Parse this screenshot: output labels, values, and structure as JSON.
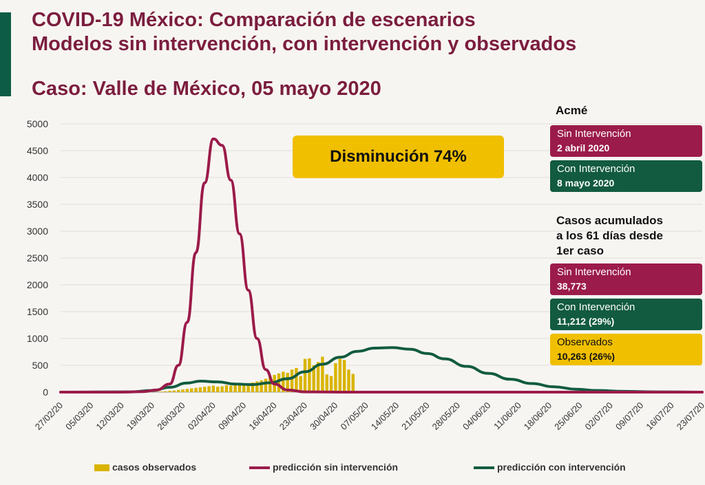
{
  "header": {
    "title_line1": "COVID-19 México: Comparación de escenarios",
    "title_line2": "Modelos sin intervención, con intervención y observados",
    "subtitle": "Caso: Valle de México, 05 mayo 2020"
  },
  "callout": {
    "text": "Disminución 74%"
  },
  "side_panel": {
    "acme_title": "Acmé",
    "acme_sin": {
      "label": "Sin Intervención",
      "value": "2 abril 2020"
    },
    "acme_con": {
      "label": "Con Intervención",
      "value": "8 mayo 2020"
    },
    "acum_title_line1": "Casos acumulados",
    "acum_title_line2": "a los 61 días desde",
    "acum_title_line3": "1er caso",
    "acum_sin": {
      "label": "Sin Intervención",
      "value": "38,773"
    },
    "acum_con": {
      "label": "Con Intervención",
      "value": "11,212 (29%)"
    },
    "acum_obs": {
      "label": "Observados",
      "value": "10,263 (26%)"
    }
  },
  "colors": {
    "title": "#7b1d3e",
    "sin_intervencion": "#9b1b4a",
    "con_intervencion": "#125b40",
    "observados": "#d9b400",
    "callout": "#f0bf00"
  },
  "chart_data": {
    "type": "line",
    "x_axis": {
      "type": "date",
      "tick_labels": [
        "27/02/20",
        "05/03/20",
        "12/03/20",
        "19/03/20",
        "26/03/20",
        "02/04/20",
        "09/04/20",
        "16/04/20",
        "23/04/20",
        "30/04/20",
        "07/05/20",
        "14/05/20",
        "21/05/20",
        "28/05/20",
        "04/06/20",
        "11/06/20",
        "18/06/20",
        "25/06/20",
        "02/07/20",
        "09/07/20",
        "16/07/20",
        "23/07/20"
      ]
    },
    "y_axis": {
      "ylim": [
        0,
        5000
      ],
      "tick_labels": [
        "0",
        "500",
        "1000",
        "1500",
        "2000",
        "2500",
        "3000",
        "3500",
        "4000",
        "4500",
        "5000"
      ]
    },
    "grid": "horizontal",
    "legend_position": "bottom",
    "series": [
      {
        "name": "predicción sin intervención",
        "kind": "line",
        "points": [
          [
            "2020-02-27",
            0
          ],
          [
            "2020-03-12",
            0
          ],
          [
            "2020-03-17",
            10
          ],
          [
            "2020-03-20",
            40
          ],
          [
            "2020-03-23",
            150
          ],
          [
            "2020-03-25",
            500
          ],
          [
            "2020-03-27",
            1300
          ],
          [
            "2020-03-29",
            2600
          ],
          [
            "2020-03-31",
            3900
          ],
          [
            "2020-04-02",
            4720
          ],
          [
            "2020-04-04",
            4600
          ],
          [
            "2020-04-06",
            3950
          ],
          [
            "2020-04-08",
            2950
          ],
          [
            "2020-04-10",
            1900
          ],
          [
            "2020-04-12",
            1000
          ],
          [
            "2020-04-14",
            420
          ],
          [
            "2020-04-16",
            150
          ],
          [
            "2020-04-19",
            40
          ],
          [
            "2020-04-23",
            5
          ],
          [
            "2020-05-01",
            0
          ],
          [
            "2020-07-23",
            0
          ]
        ]
      },
      {
        "name": "predicción con intervención",
        "kind": "line",
        "points": [
          [
            "2020-02-27",
            0
          ],
          [
            "2020-03-14",
            5
          ],
          [
            "2020-03-19",
            30
          ],
          [
            "2020-03-23",
            90
          ],
          [
            "2020-03-27",
            170
          ],
          [
            "2020-03-30",
            205
          ],
          [
            "2020-04-03",
            190
          ],
          [
            "2020-04-07",
            150
          ],
          [
            "2020-04-11",
            140
          ],
          [
            "2020-04-15",
            175
          ],
          [
            "2020-04-19",
            250
          ],
          [
            "2020-04-23",
            380
          ],
          [
            "2020-04-27",
            520
          ],
          [
            "2020-05-01",
            650
          ],
          [
            "2020-05-05",
            760
          ],
          [
            "2020-05-09",
            820
          ],
          [
            "2020-05-13",
            830
          ],
          [
            "2020-05-17",
            800
          ],
          [
            "2020-05-21",
            720
          ],
          [
            "2020-05-25",
            620
          ],
          [
            "2020-05-30",
            480
          ],
          [
            "2020-06-04",
            350
          ],
          [
            "2020-06-09",
            240
          ],
          [
            "2020-06-14",
            160
          ],
          [
            "2020-06-19",
            100
          ],
          [
            "2020-06-24",
            55
          ],
          [
            "2020-06-29",
            30
          ],
          [
            "2020-07-05",
            15
          ],
          [
            "2020-07-12",
            5
          ],
          [
            "2020-07-23",
            0
          ]
        ]
      },
      {
        "name": "casos observados",
        "kind": "bar",
        "points": [
          [
            "2020-03-20",
            5
          ],
          [
            "2020-03-21",
            10
          ],
          [
            "2020-03-22",
            15
          ],
          [
            "2020-03-23",
            25
          ],
          [
            "2020-03-24",
            30
          ],
          [
            "2020-03-25",
            40
          ],
          [
            "2020-03-26",
            50
          ],
          [
            "2020-03-27",
            60
          ],
          [
            "2020-03-28",
            70
          ],
          [
            "2020-03-29",
            80
          ],
          [
            "2020-03-30",
            90
          ],
          [
            "2020-03-31",
            100
          ],
          [
            "2020-04-01",
            110
          ],
          [
            "2020-04-02",
            120
          ],
          [
            "2020-04-03",
            100
          ],
          [
            "2020-04-04",
            110
          ],
          [
            "2020-04-05",
            130
          ],
          [
            "2020-04-06",
            120
          ],
          [
            "2020-04-07",
            140
          ],
          [
            "2020-04-08",
            150
          ],
          [
            "2020-04-09",
            160
          ],
          [
            "2020-04-10",
            170
          ],
          [
            "2020-04-11",
            180
          ],
          [
            "2020-04-12",
            200
          ],
          [
            "2020-04-13",
            220
          ],
          [
            "2020-04-14",
            250
          ],
          [
            "2020-04-15",
            300
          ],
          [
            "2020-04-16",
            320
          ],
          [
            "2020-04-17",
            350
          ],
          [
            "2020-04-18",
            380
          ],
          [
            "2020-04-19",
            360
          ],
          [
            "2020-04-20",
            420
          ],
          [
            "2020-04-21",
            450
          ],
          [
            "2020-04-22",
            300
          ],
          [
            "2020-04-23",
            620
          ],
          [
            "2020-04-24",
            630
          ],
          [
            "2020-04-25",
            500
          ],
          [
            "2020-04-26",
            560
          ],
          [
            "2020-04-27",
            660
          ],
          [
            "2020-04-28",
            330
          ],
          [
            "2020-04-29",
            300
          ],
          [
            "2020-04-30",
            540
          ],
          [
            "2020-05-01",
            620
          ],
          [
            "2020-05-02",
            600
          ],
          [
            "2020-05-03",
            420
          ],
          [
            "2020-05-04",
            340
          ]
        ]
      }
    ]
  }
}
